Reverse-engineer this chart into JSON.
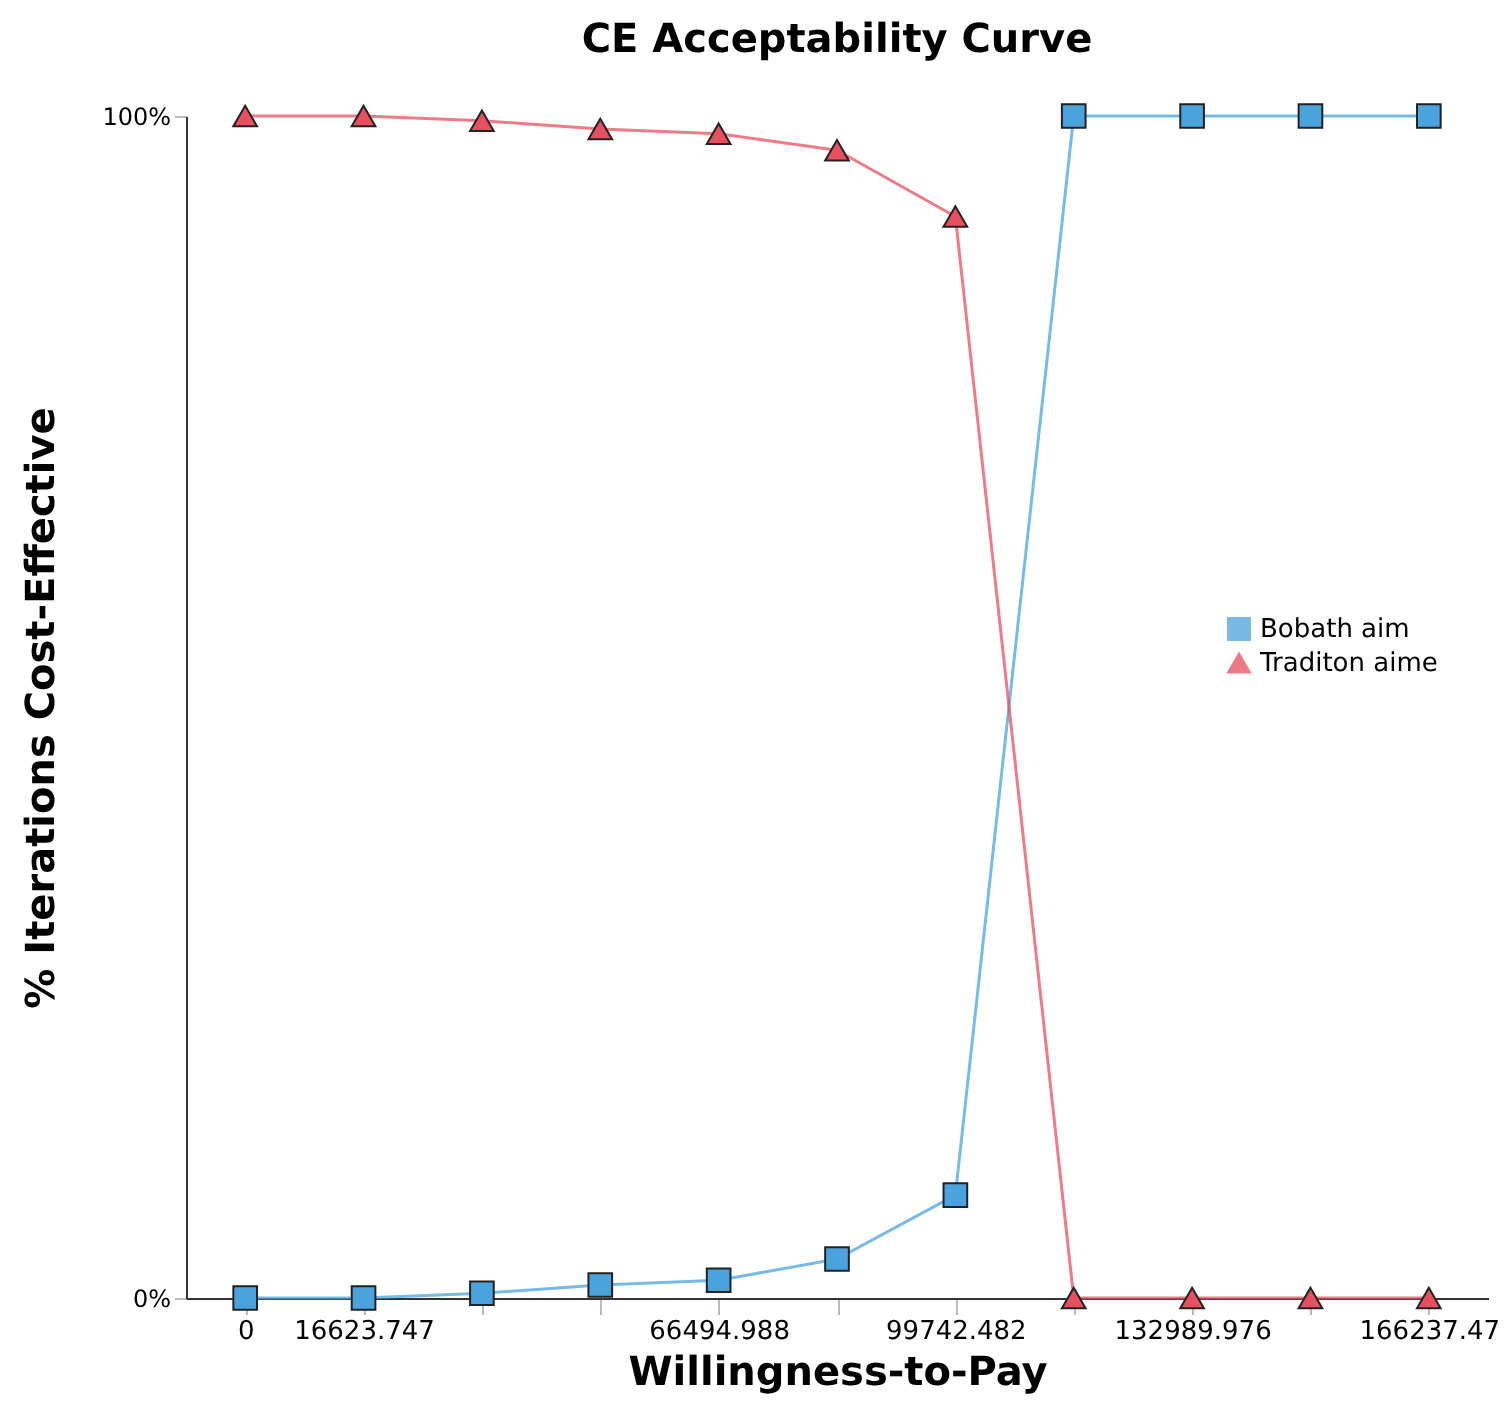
{
  "chart_data": {
    "type": "line",
    "title": "CE Acceptability Curve",
    "xlabel": "Willingness-to-Pay",
    "ylabel": "% Iterations Cost-Effective",
    "x": [
      0,
      16623.747,
      33247.494,
      49871.241,
      66494.988,
      83118.735,
      99742.482,
      116366.229,
      132989.976,
      149613.723,
      166237.47
    ],
    "series": [
      {
        "name": "Bobath aim",
        "color": "#4ba3dd",
        "marker": "square",
        "values": [
          0,
          0,
          0.4,
          1.1,
          1.5,
          3.3,
          8.7,
          100,
          100,
          100,
          100
        ]
      },
      {
        "name": "Traditon aime",
        "color": "#e8505f",
        "marker": "triangle",
        "values": [
          100,
          100,
          99.6,
          98.9,
          98.5,
          97.1,
          91.5,
          0,
          0,
          0,
          0
        ]
      }
    ],
    "xlim": [
      -8311.87,
      174549.34
    ],
    "xticks": [
      0,
      16623.747,
      {
        "value": 33247.494,
        "label": null
      },
      {
        "value": 49871.241,
        "label": null
      },
      66494.988,
      {
        "value": 83118.735,
        "label": null
      },
      99742.482,
      {
        "value": 116366.229,
        "label": null
      },
      132989.976,
      {
        "value": 149613.723,
        "label": null
      },
      166237.47
    ],
    "ylim": [
      0,
      100
    ],
    "yticks": [
      {
        "value": 0,
        "label": "0%"
      },
      {
        "value": 100,
        "label": "100%"
      }
    ],
    "grid": false,
    "legend": "right",
    "line_style": "solid"
  }
}
